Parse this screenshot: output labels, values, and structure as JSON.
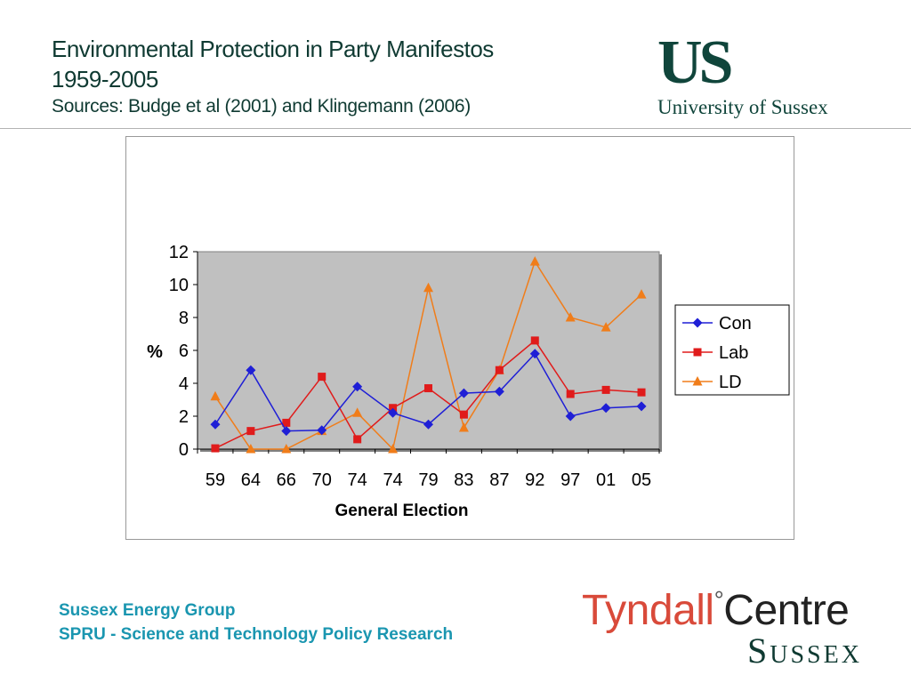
{
  "header": {
    "title_line1": "Environmental Protection in Party Manifestos",
    "title_line2": "1959-2005",
    "subtitle": "Sources: Budge et al (2001) and Klingemann (2006)"
  },
  "logo_us": {
    "mark": "US",
    "name": "University of Sussex"
  },
  "footer": {
    "line1": "Sussex Energy Group",
    "line2": "SPRU - Science and Technology Policy Research"
  },
  "tyndall": {
    "word1": "Tyndall",
    "degree": "°",
    "word2": "Centre",
    "word3": "Sussex"
  },
  "chart_data": {
    "type": "line",
    "title": "",
    "xlabel": "General Election",
    "ylabel": "%",
    "categories": [
      "59",
      "64",
      "66",
      "70",
      "74",
      "74",
      "79",
      "83",
      "87",
      "92",
      "97",
      "01",
      "05"
    ],
    "ylim": [
      0,
      12
    ],
    "yticks": [
      0,
      2,
      4,
      6,
      8,
      10,
      12
    ],
    "grid": false,
    "legend": "right",
    "plot_background": "#c0c0c0",
    "series": [
      {
        "name": "Con",
        "color": "#1f1fd6",
        "marker": "diamond",
        "values": [
          1.5,
          4.8,
          1.1,
          1.15,
          3.8,
          2.2,
          1.5,
          3.4,
          3.5,
          5.8,
          2.0,
          2.5,
          2.6
        ]
      },
      {
        "name": "Lab",
        "color": "#e01b1b",
        "marker": "square",
        "values": [
          0.05,
          1.1,
          1.6,
          4.4,
          0.6,
          2.5,
          3.7,
          2.1,
          4.8,
          6.6,
          3.35,
          3.6,
          3.45
        ]
      },
      {
        "name": "LD",
        "color": "#f07d1a",
        "marker": "triangle",
        "values": [
          3.2,
          0.0,
          0.0,
          1.1,
          2.2,
          0.0,
          9.8,
          1.3,
          4.8,
          11.4,
          8.0,
          7.4,
          9.4
        ]
      }
    ]
  }
}
